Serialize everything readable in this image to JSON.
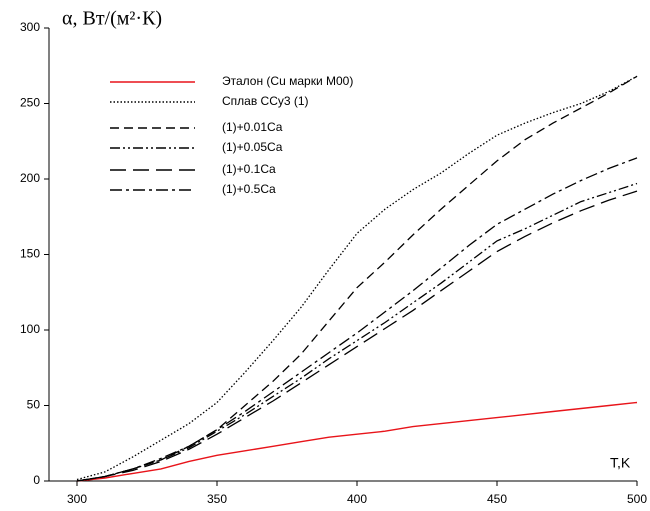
{
  "chart_data": {
    "type": "line",
    "y_label": "α, Вт/(м²·К)",
    "x_label": "T,K",
    "x": [
      300,
      310,
      320,
      330,
      340,
      350,
      360,
      370,
      380,
      390,
      400,
      410,
      420,
      430,
      440,
      450,
      460,
      470,
      480,
      490,
      500
    ],
    "xlim": [
      290,
      500
    ],
    "xticks": [
      300,
      350,
      400,
      450,
      500
    ],
    "ylim": [
      0,
      300
    ],
    "yticks": [
      0,
      50,
      100,
      150,
      200,
      250,
      300
    ],
    "grid": false,
    "series": [
      {
        "name": "Эталон (Cu марки M00)",
        "color": "#e8141a",
        "style": "solid",
        "values": [
          0,
          2,
          5,
          8,
          13,
          17,
          20,
          23,
          26,
          29,
          31,
          33,
          36,
          38,
          40,
          42,
          44,
          46,
          48,
          50,
          52
        ]
      },
      {
        "name": "Сплав ССу3 (1)",
        "color": "#000000",
        "style": "dotted",
        "values": [
          1,
          6,
          16,
          27,
          38,
          52,
          72,
          93,
          115,
          140,
          164,
          180,
          193,
          204,
          217,
          229,
          237,
          244,
          250,
          258,
          268
        ]
      },
      {
        "name": "(1)+0.01Ca",
        "color": "#000000",
        "style": "dashed",
        "values": [
          0,
          3,
          8,
          14,
          23,
          34,
          50,
          66,
          84,
          106,
          128,
          145,
          163,
          180,
          196,
          212,
          226,
          237,
          247,
          257,
          268
        ]
      },
      {
        "name": "(1)+0.05Ca",
        "color": "#000000",
        "style": "dash-dot-dot",
        "values": [
          0,
          3,
          8,
          14,
          22,
          33,
          44,
          56,
          68,
          81,
          93,
          105,
          118,
          131,
          145,
          159,
          167,
          176,
          185,
          191,
          197
        ]
      },
      {
        "name": "(1)+0.1Ca",
        "color": "#000000",
        "style": "long-dash",
        "values": [
          0,
          3,
          7,
          13,
          21,
          31,
          42,
          53,
          65,
          77,
          89,
          101,
          113,
          126,
          139,
          152,
          162,
          171,
          179,
          186,
          192
        ]
      },
      {
        "name": "(1)+0.5Ca",
        "color": "#000000",
        "style": "dash-dot",
        "values": [
          0,
          3,
          8,
          15,
          23,
          34,
          46,
          59,
          72,
          85,
          98,
          112,
          126,
          141,
          156,
          170,
          180,
          190,
          199,
          207,
          214
        ]
      }
    ]
  }
}
